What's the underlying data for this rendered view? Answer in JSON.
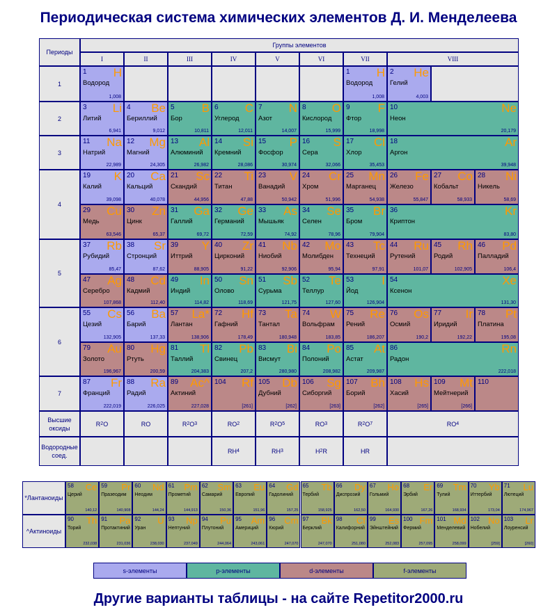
{
  "title": "Периодическая система химических элементов Д. И. Менделеева",
  "footer": "Другие варианты таблицы - на сайте Repetitor2000.ru",
  "headers": {
    "periods": "Периоды",
    "groups": "Группы элементов",
    "group_numerals": [
      "I",
      "II",
      "III",
      "IV",
      "V",
      "VI",
      "VII",
      "VIII"
    ],
    "period_numbers": [
      "1",
      "2",
      "3",
      "4",
      "5",
      "6",
      "7"
    ],
    "oxides_label": "Высшие оксиды",
    "hydrides_label": "Водородные соед.",
    "lanthanides_label": "*Лантаноиды",
    "actinides_label": "^Актиноиды"
  },
  "oxides": [
    {
      "base": "R",
      "sub": "2",
      "tail": "O",
      "tsub": ""
    },
    {
      "base": "RO",
      "sub": "",
      "tail": "",
      "tsub": ""
    },
    {
      "base": "R",
      "sub": "2",
      "tail": "O",
      "tsub": "3"
    },
    {
      "base": "RO",
      "sub": "2",
      "tail": "",
      "tsub": ""
    },
    {
      "base": "R",
      "sub": "2",
      "tail": "O",
      "tsub": "5"
    },
    {
      "base": "RO",
      "sub": "3",
      "tail": "",
      "tsub": ""
    },
    {
      "base": "R",
      "sub": "2",
      "tail": "O",
      "tsub": "7"
    },
    {
      "base": "RO",
      "sub": "4",
      "tail": "",
      "tsub": ""
    }
  ],
  "hydrides": [
    {
      "base": "",
      "sub": "",
      "tail": "",
      "tsub": ""
    },
    {
      "base": "",
      "sub": "",
      "tail": "",
      "tsub": ""
    },
    {
      "base": "",
      "sub": "",
      "tail": "",
      "tsub": ""
    },
    {
      "base": "RH",
      "sub": "4",
      "tail": "",
      "tsub": ""
    },
    {
      "base": "RH",
      "sub": "3",
      "tail": "",
      "tsub": ""
    },
    {
      "base": "H",
      "sub": "2",
      "tail": "R",
      "tsub": ""
    },
    {
      "base": "HR",
      "sub": "",
      "tail": "",
      "tsub": ""
    },
    {
      "base": "",
      "sub": "",
      "tail": "",
      "tsub": ""
    }
  ],
  "legend": [
    "s-элементы",
    "p-элементы",
    "d-элементы",
    "f-элементы"
  ],
  "colors": {
    "s": "#aaaaee",
    "p": "#5fb6a0",
    "d": "#bb8888",
    "f": "#9eaa78",
    "symbol": "#ff9900",
    "border": "#000080",
    "empty": "#e6e6e6"
  },
  "elements": [
    {
      "n": "1",
      "sym": "H",
      "name": "Водород",
      "mass": "1,008",
      "t": "s",
      "c": 0,
      "r": 0
    },
    {
      "n": "1",
      "sym": "H",
      "name": "Водород",
      "mass": "1,008",
      "t": "s",
      "c": 6,
      "r": 0
    },
    {
      "n": "2",
      "sym": "He",
      "name": "Гелий",
      "mass": "4,003",
      "t": "s",
      "c": 7,
      "r": 0
    },
    {
      "n": "3",
      "sym": "Li",
      "name": "Литий",
      "mass": "6,941",
      "t": "s",
      "c": 0,
      "r": 1
    },
    {
      "n": "4",
      "sym": "Be",
      "name": "Бериллий",
      "mass": "9,012",
      "t": "s",
      "c": 1,
      "r": 1
    },
    {
      "n": "5",
      "sym": "B",
      "name": "Бор",
      "mass": "10,811",
      "t": "p",
      "c": 2,
      "r": 1
    },
    {
      "n": "6",
      "sym": "C",
      "name": "Углерод",
      "mass": "12,011",
      "t": "p",
      "c": 3,
      "r": 1
    },
    {
      "n": "7",
      "sym": "N",
      "name": "Азот",
      "mass": "14,007",
      "t": "p",
      "c": 4,
      "r": 1
    },
    {
      "n": "8",
      "sym": "O",
      "name": "Кислород",
      "mass": "15,999",
      "t": "p",
      "c": 5,
      "r": 1
    },
    {
      "n": "9",
      "sym": "F",
      "name": "Фтор",
      "mass": "18,998",
      "t": "p",
      "c": 6,
      "r": 1
    },
    {
      "n": "10",
      "sym": "Ne",
      "name": "Неон",
      "mass": "20,179",
      "t": "p",
      "c": 7,
      "r": 1
    },
    {
      "n": "11",
      "sym": "Na",
      "name": "Натрий",
      "mass": "22,989",
      "t": "s",
      "c": 0,
      "r": 2
    },
    {
      "n": "12",
      "sym": "Mg",
      "name": "Магний",
      "mass": "24,305",
      "t": "s",
      "c": 1,
      "r": 2
    },
    {
      "n": "13",
      "sym": "Al",
      "name": "Алюминий",
      "mass": "26,982",
      "t": "p",
      "c": 2,
      "r": 2
    },
    {
      "n": "14",
      "sym": "Si",
      "name": "Кремний",
      "mass": "28,086",
      "t": "p",
      "c": 3,
      "r": 2
    },
    {
      "n": "15",
      "sym": "P",
      "name": "Фосфор",
      "mass": "30,974",
      "t": "p",
      "c": 4,
      "r": 2
    },
    {
      "n": "16",
      "sym": "S",
      "name": "Сера",
      "mass": "32,066",
      "t": "p",
      "c": 5,
      "r": 2
    },
    {
      "n": "17",
      "sym": "Cl",
      "name": "Хлор",
      "mass": "35,453",
      "t": "p",
      "c": 6,
      "r": 2
    },
    {
      "n": "18",
      "sym": "Ar",
      "name": "Аргон",
      "mass": "39,948",
      "t": "p",
      "c": 7,
      "r": 2
    },
    {
      "n": "19",
      "sym": "K",
      "name": "Калий",
      "mass": "39,098",
      "t": "s",
      "c": 0,
      "r": 3
    },
    {
      "n": "20",
      "sym": "Ca",
      "name": "Кальций",
      "mass": "40,078",
      "t": "s",
      "c": 1,
      "r": 3
    },
    {
      "n": "21",
      "sym": "Sc",
      "name": "Скандий",
      "mass": "44,956",
      "t": "d",
      "c": 2,
      "r": 3
    },
    {
      "n": "22",
      "sym": "Ti",
      "name": "Титан",
      "mass": "47,88",
      "t": "d",
      "c": 3,
      "r": 3
    },
    {
      "n": "23",
      "sym": "V",
      "name": "Ванадий",
      "mass": "50,942",
      "t": "d",
      "c": 4,
      "r": 3
    },
    {
      "n": "24",
      "sym": "Cr",
      "name": "Хром",
      "mass": "51,996",
      "t": "d",
      "c": 5,
      "r": 3
    },
    {
      "n": "25",
      "sym": "Mn",
      "name": "Марганец",
      "mass": "54,938",
      "t": "d",
      "c": 6,
      "r": 3
    },
    {
      "n": "26",
      "sym": "Fe",
      "name": "Железо",
      "mass": "55,847",
      "t": "d",
      "c": 7,
      "r": 3
    },
    {
      "n": "27",
      "sym": "Co",
      "name": "Кобальт",
      "mass": "58,933",
      "t": "d",
      "c": 8,
      "r": 3
    },
    {
      "n": "28",
      "sym": "Ni",
      "name": "Никель",
      "mass": "58,69",
      "t": "d",
      "c": 9,
      "r": 3
    },
    {
      "n": "29",
      "sym": "Cu",
      "name": "Медь",
      "mass": "63,546",
      "t": "d",
      "c": 0,
      "r": 4
    },
    {
      "n": "30",
      "sym": "Zn",
      "name": "Цинк",
      "mass": "65,37",
      "t": "d",
      "c": 1,
      "r": 4
    },
    {
      "n": "31",
      "sym": "Ga",
      "name": "Галлий",
      "mass": "69,72",
      "t": "p",
      "c": 2,
      "r": 4
    },
    {
      "n": "32",
      "sym": "Ge",
      "name": "Германий",
      "mass": "72,59",
      "t": "p",
      "c": 3,
      "r": 4
    },
    {
      "n": "33",
      "sym": "As",
      "name": "Мышьяк",
      "mass": "74,92",
      "t": "p",
      "c": 4,
      "r": 4
    },
    {
      "n": "34",
      "sym": "Se",
      "name": "Селен",
      "mass": "78,96",
      "t": "p",
      "c": 5,
      "r": 4
    },
    {
      "n": "35",
      "sym": "Br",
      "name": "Бром",
      "mass": "79,904",
      "t": "p",
      "c": 6,
      "r": 4
    },
    {
      "n": "36",
      "sym": "Kr",
      "name": "Криптон",
      "mass": "83,80",
      "t": "p",
      "c": 7,
      "r": 4
    },
    {
      "n": "37",
      "sym": "Rb",
      "name": "Рубидий",
      "mass": "85,47",
      "t": "s",
      "c": 0,
      "r": 5
    },
    {
      "n": "38",
      "sym": "Sr",
      "name": "Стронций",
      "mass": "87,62",
      "t": "s",
      "c": 1,
      "r": 5
    },
    {
      "n": "39",
      "sym": "Y",
      "name": "Иттрий",
      "mass": "88,905",
      "t": "d",
      "c": 2,
      "r": 5
    },
    {
      "n": "40",
      "sym": "Zr",
      "name": "Цирконий",
      "mass": "91,22",
      "t": "d",
      "c": 3,
      "r": 5
    },
    {
      "n": "41",
      "sym": "Nb",
      "name": "Ниобий",
      "mass": "92,906",
      "t": "d",
      "c": 4,
      "r": 5
    },
    {
      "n": "42",
      "sym": "Mo",
      "name": "Молибден",
      "mass": "95,94",
      "t": "d",
      "c": 5,
      "r": 5
    },
    {
      "n": "43",
      "sym": "Tc",
      "name": "Технеций",
      "mass": "97,91",
      "t": "d",
      "c": 6,
      "r": 5
    },
    {
      "n": "44",
      "sym": "Ru",
      "name": "Рутений",
      "mass": "101,07",
      "t": "d",
      "c": 7,
      "r": 5
    },
    {
      "n": "45",
      "sym": "Rh",
      "name": "Родий",
      "mass": "102,905",
      "t": "d",
      "c": 8,
      "r": 5
    },
    {
      "n": "46",
      "sym": "Pd",
      "name": "Палладий",
      "mass": "106,4",
      "t": "d",
      "c": 9,
      "r": 5
    },
    {
      "n": "47",
      "sym": "Ag",
      "name": "Серебро",
      "mass": "107,868",
      "t": "d",
      "c": 0,
      "r": 6
    },
    {
      "n": "48",
      "sym": "Cd",
      "name": "Кадмий",
      "mass": "112,40",
      "t": "d",
      "c": 1,
      "r": 6
    },
    {
      "n": "49",
      "sym": "In",
      "name": "Индий",
      "mass": "114,82",
      "t": "p",
      "c": 2,
      "r": 6
    },
    {
      "n": "50",
      "sym": "Sn",
      "name": "Олово",
      "mass": "118,69",
      "t": "p",
      "c": 3,
      "r": 6
    },
    {
      "n": "51",
      "sym": "Sb",
      "name": "Сурьма",
      "mass": "121,75",
      "t": "p",
      "c": 4,
      "r": 6
    },
    {
      "n": "52",
      "sym": "Te",
      "name": "Теллур",
      "mass": "127,60",
      "t": "p",
      "c": 5,
      "r": 6
    },
    {
      "n": "53",
      "sym": "I",
      "name": "Йод",
      "mass": "126,904",
      "t": "p",
      "c": 6,
      "r": 6
    },
    {
      "n": "54",
      "sym": "Xe",
      "name": "Ксенон",
      "mass": "131,30",
      "t": "p",
      "c": 7,
      "r": 6
    },
    {
      "n": "55",
      "sym": "Cs",
      "name": "Цезий",
      "mass": "132,905",
      "t": "s",
      "c": 0,
      "r": 7
    },
    {
      "n": "56",
      "sym": "Ba",
      "name": "Барий",
      "mass": "137,33",
      "t": "s",
      "c": 1,
      "r": 7
    },
    {
      "n": "57",
      "sym": "La*",
      "name": "Лантан",
      "mass": "138,906",
      "t": "d",
      "c": 2,
      "r": 7
    },
    {
      "n": "72",
      "sym": "Hf",
      "name": "Гафний",
      "mass": "178,49",
      "t": "d",
      "c": 3,
      "r": 7
    },
    {
      "n": "73",
      "sym": "Ta",
      "name": "Тантал",
      "mass": "180,948",
      "t": "d",
      "c": 4,
      "r": 7
    },
    {
      "n": "74",
      "sym": "W",
      "name": "Вольфрам",
      "mass": "183,85",
      "t": "d",
      "c": 5,
      "r": 7
    },
    {
      "n": "75",
      "sym": "Re",
      "name": "Рений",
      "mass": "186,207",
      "t": "d",
      "c": 6,
      "r": 7
    },
    {
      "n": "76",
      "sym": "Os",
      "name": "Осмий",
      "mass": "190,2",
      "t": "d",
      "c": 7,
      "r": 7
    },
    {
      "n": "77",
      "sym": "Ir",
      "name": "Иридий",
      "mass": "192,22",
      "t": "d",
      "c": 8,
      "r": 7
    },
    {
      "n": "78",
      "sym": "Pt",
      "name": "Платина",
      "mass": "195,08",
      "t": "d",
      "c": 9,
      "r": 7
    },
    {
      "n": "79",
      "sym": "Au",
      "name": "Золото",
      "mass": "196,967",
      "t": "d",
      "c": 0,
      "r": 8
    },
    {
      "n": "80",
      "sym": "Hg",
      "name": "Ртуть",
      "mass": "200,59",
      "t": "d",
      "c": 1,
      "r": 8
    },
    {
      "n": "81",
      "sym": "Tl",
      "name": "Таллий",
      "mass": "204,383",
      "t": "p",
      "c": 2,
      "r": 8
    },
    {
      "n": "82",
      "sym": "Pb",
      "name": "Свинец",
      "mass": "207,2",
      "t": "p",
      "c": 3,
      "r": 8
    },
    {
      "n": "83",
      "sym": "Bi",
      "name": "Висмут",
      "mass": "280,980",
      "t": "p",
      "c": 4,
      "r": 8
    },
    {
      "n": "84",
      "sym": "Po",
      "name": "Полоний",
      "mass": "208,982",
      "t": "p",
      "c": 5,
      "r": 8
    },
    {
      "n": "85",
      "sym": "At",
      "name": "Астат",
      "mass": "209,987",
      "t": "p",
      "c": 6,
      "r": 8
    },
    {
      "n": "86",
      "sym": "Rn",
      "name": "Радон",
      "mass": "222,018",
      "t": "p",
      "c": 7,
      "r": 8
    },
    {
      "n": "87",
      "sym": "Fr",
      "name": "Франций",
      "mass": "222,019",
      "t": "s",
      "c": 0,
      "r": 9
    },
    {
      "n": "88",
      "sym": "Ra",
      "name": "Радий",
      "mass": "226,025",
      "t": "s",
      "c": 1,
      "r": 9
    },
    {
      "n": "89",
      "sym": "Ac^",
      "name": "Актиний",
      "mass": "227,028",
      "t": "d",
      "c": 2,
      "r": 9
    },
    {
      "n": "104",
      "sym": "Rf",
      "name": "",
      "mass": "[261]",
      "t": "d",
      "c": 3,
      "r": 9
    },
    {
      "n": "105",
      "sym": "Db",
      "name": "Дубний",
      "mass": "[262]",
      "t": "d",
      "c": 4,
      "r": 9
    },
    {
      "n": "106",
      "sym": "Sg",
      "name": "Сиборгий",
      "mass": "[263]",
      "t": "d",
      "c": 5,
      "r": 9
    },
    {
      "n": "107",
      "sym": "Bh",
      "name": "Борий",
      "mass": "[262]",
      "t": "d",
      "c": 6,
      "r": 9
    },
    {
      "n": "108",
      "sym": "Hs",
      "name": "Хасий",
      "mass": "[265]",
      "t": "d",
      "c": 7,
      "r": 9
    },
    {
      "n": "109",
      "sym": "Mt",
      "name": "Мейтнерий",
      "mass": "[266]",
      "t": "d",
      "c": 8,
      "r": 9
    },
    {
      "n": "110",
      "sym": "",
      "name": "",
      "mass": "",
      "t": "d",
      "c": 9,
      "r": 9
    }
  ],
  "lanthanides": [
    {
      "n": "58",
      "sym": "Ce",
      "name": "Церий",
      "mass": "140,12"
    },
    {
      "n": "59",
      "sym": "Pr",
      "name": "Празеодим",
      "mass": "140,908"
    },
    {
      "n": "60",
      "sym": "Nd",
      "name": "Неодим",
      "mass": "144,24"
    },
    {
      "n": "61",
      "sym": "Pm",
      "name": "Прометий",
      "mass": "144,913"
    },
    {
      "n": "62",
      "sym": "Sm",
      "name": "Самарий",
      "mass": "150,36"
    },
    {
      "n": "63",
      "sym": "Eu",
      "name": "Европий",
      "mass": "151,96"
    },
    {
      "n": "64",
      "sym": "Gd",
      "name": "Гадолиний",
      "mass": "157,25"
    },
    {
      "n": "65",
      "sym": "Tb",
      "name": "Тербий",
      "mass": "158,925"
    },
    {
      "n": "66",
      "sym": "Dy",
      "name": "Диспрозий",
      "mass": "162,50"
    },
    {
      "n": "67",
      "sym": "Ho",
      "name": "Гольмий",
      "mass": "164,930"
    },
    {
      "n": "68",
      "sym": "Er",
      "name": "Эрбий",
      "mass": "167,26"
    },
    {
      "n": "69",
      "sym": "Tm",
      "name": "Тулий",
      "mass": "168,934"
    },
    {
      "n": "70",
      "sym": "Yb",
      "name": "Иттербий",
      "mass": "173,04"
    },
    {
      "n": "71",
      "sym": "Lu",
      "name": "Лютеций",
      "mass": "174,967"
    }
  ],
  "actinides": [
    {
      "n": "90",
      "sym": "Th",
      "name": "Торий",
      "mass": "232,038"
    },
    {
      "n": "91",
      "sym": "Pa",
      "name": "Протактиний",
      "mass": "231,036"
    },
    {
      "n": "92",
      "sym": "U",
      "name": "Уран",
      "mass": "238,030"
    },
    {
      "n": "93",
      "sym": "Np",
      "name": "Нептуний",
      "mass": "237,049"
    },
    {
      "n": "94",
      "sym": "Pu",
      "name": "Плутоний",
      "mass": "244,064"
    },
    {
      "n": "95",
      "sym": "Am",
      "name": "Америций",
      "mass": "243,061"
    },
    {
      "n": "96",
      "sym": "Cm",
      "name": "Кюрий",
      "mass": "247,070"
    },
    {
      "n": "97",
      "sym": "Bk",
      "name": "Берклий",
      "mass": "247,070"
    },
    {
      "n": "98",
      "sym": "Cf",
      "name": "Калифорний",
      "mass": "251,080"
    },
    {
      "n": "99",
      "sym": "Es",
      "name": "Эйнштейний",
      "mass": "252,083"
    },
    {
      "n": "100",
      "sym": "Fm",
      "name": "Фермий",
      "mass": "257,095"
    },
    {
      "n": "101",
      "sym": "Md",
      "name": "Менделевий",
      "mass": "258,099"
    },
    {
      "n": "102",
      "sym": "No",
      "name": "Нобелий",
      "mass": "[259]"
    },
    {
      "n": "103",
      "sym": "Lr",
      "name": "Лоуренсий",
      "mass": "[260]"
    }
  ]
}
